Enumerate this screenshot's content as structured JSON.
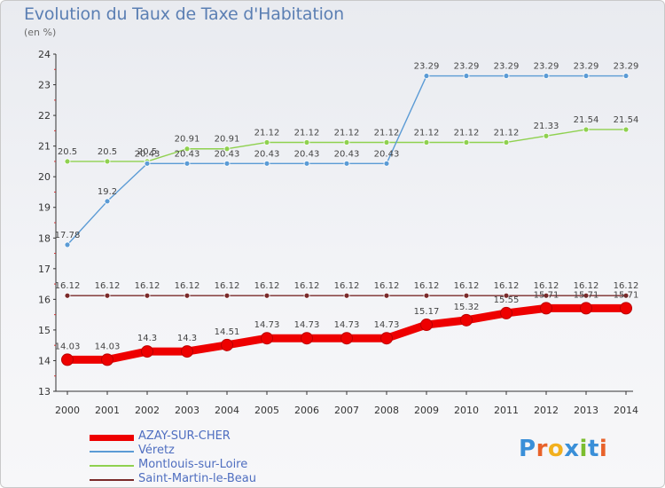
{
  "title": "Evolution du Taux de Taxe d'Habitation",
  "unit_label": "(en %)",
  "logo": {
    "text": "Proxiti",
    "colors": [
      "#3a8fd8",
      "#e8622a",
      "#f2b01e",
      "#3a8fd8",
      "#7bbd2f",
      "#3a8fd8",
      "#e8622a"
    ]
  },
  "chart_data": {
    "type": "line",
    "x": [
      2000,
      2001,
      2002,
      2003,
      2004,
      2005,
      2006,
      2007,
      2008,
      2009,
      2010,
      2011,
      2012,
      2013,
      2014
    ],
    "ylim": [
      13,
      24
    ],
    "yticks": [
      13,
      14,
      15,
      16,
      17,
      18,
      19,
      20,
      21,
      22,
      23,
      24
    ],
    "grid": false,
    "legend_position": "bottom-left",
    "series": [
      {
        "name": "AZAY-SUR-CHER",
        "color": "#ee0000",
        "values": [
          14.03,
          14.03,
          14.3,
          14.3,
          14.51,
          14.73,
          14.73,
          14.73,
          14.73,
          15.17,
          15.32,
          15.55,
          15.71,
          15.71,
          15.71
        ],
        "labels": [
          "14.03",
          "14.03",
          "14.3",
          "14.3",
          "14.51",
          "14.73",
          "14.73",
          "14.73",
          "14.73",
          "15.17",
          "15.32",
          "15.55",
          "15.71",
          "15.71",
          "15.71"
        ]
      },
      {
        "name": "Véretz",
        "color": "#5b9bd5",
        "values": [
          17.78,
          19.2,
          20.43,
          20.43,
          20.43,
          20.43,
          20.43,
          20.43,
          20.43,
          23.29,
          23.29,
          23.29,
          23.29,
          23.29,
          23.29
        ],
        "labels": [
          "17.78",
          "19.2",
          "20.43",
          "20.43",
          "20.43",
          "20.43",
          "20.43",
          "20.43",
          "20.43",
          "23.29",
          "23.29",
          "23.29",
          "23.29",
          "23.29",
          "23.29"
        ]
      },
      {
        "name": "Montlouis-sur-Loire",
        "color": "#8fd14f",
        "values": [
          20.5,
          20.5,
          20.5,
          20.91,
          20.91,
          21.12,
          21.12,
          21.12,
          21.12,
          21.12,
          21.12,
          21.12,
          21.33,
          21.54,
          21.54
        ],
        "labels": [
          "20.5",
          "20.5",
          "20.5",
          "20.91",
          "20.91",
          "21.12",
          "21.12",
          "21.12",
          "21.12",
          "21.12",
          "21.12",
          "21.12",
          "21.33",
          "21.54",
          "21.54"
        ]
      },
      {
        "name": "Saint-Martin-le-Beau",
        "color": "#7a2a2a",
        "values": [
          16.12,
          16.12,
          16.12,
          16.12,
          16.12,
          16.12,
          16.12,
          16.12,
          16.12,
          16.12,
          16.12,
          16.12,
          16.12,
          16.12,
          16.12
        ],
        "labels": [
          "16.12",
          "16.12",
          "16.12",
          "16.12",
          "16.12",
          "16.12",
          "16.12",
          "16.12",
          "16.12",
          "16.12",
          "16.12",
          "16.12",
          "16.12",
          "16.12",
          "16.12"
        ]
      }
    ]
  }
}
